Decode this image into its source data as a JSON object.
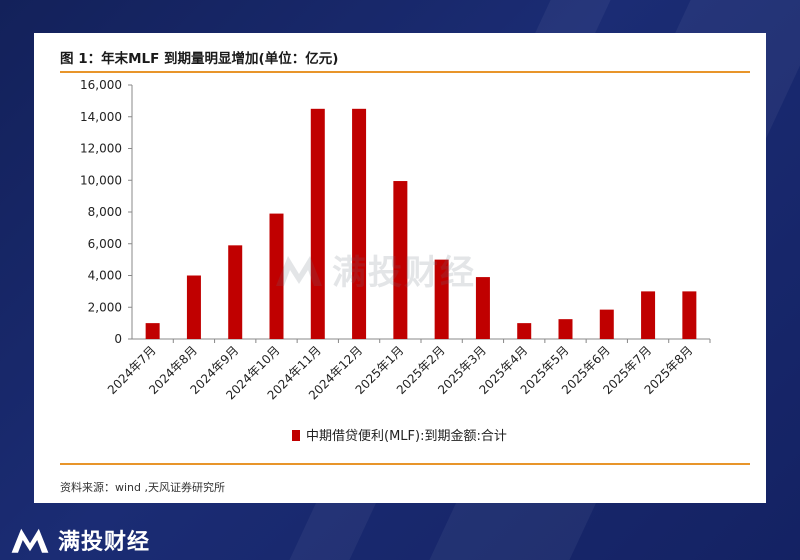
{
  "title": "图 1：年末MLF 到期量明显增加(单位：亿元)",
  "source": "资料来源：wind ,天风证券研究所",
  "brand": "满投财经",
  "watermark": "满投财经",
  "colors": {
    "bar": "#c00000",
    "rule": "#e8952a",
    "background": "#17256a"
  },
  "chart_data": {
    "type": "bar",
    "categories": [
      "2024年7月",
      "2024年8月",
      "2024年9月",
      "2024年10月",
      "2024年11月",
      "2024年12月",
      "2025年1月",
      "2025年2月",
      "2025年3月",
      "2025年4月",
      "2025年5月",
      "2025年6月",
      "2025年7月",
      "2025年8月"
    ],
    "series": [
      {
        "name": "中期借贷便利(MLF):到期金额:合计",
        "values": [
          1000,
          4000,
          5900,
          7900,
          14500,
          14500,
          9950,
          5000,
          3900,
          1000,
          1250,
          1850,
          3000,
          3000
        ]
      }
    ],
    "ylim": [
      0,
      16000
    ],
    "yticks": [
      "0",
      "2,000",
      "4,000",
      "6,000",
      "8,000",
      "10,000",
      "12,000",
      "14,000",
      "16,000"
    ],
    "legend": "bottom-center",
    "grid": false
  }
}
